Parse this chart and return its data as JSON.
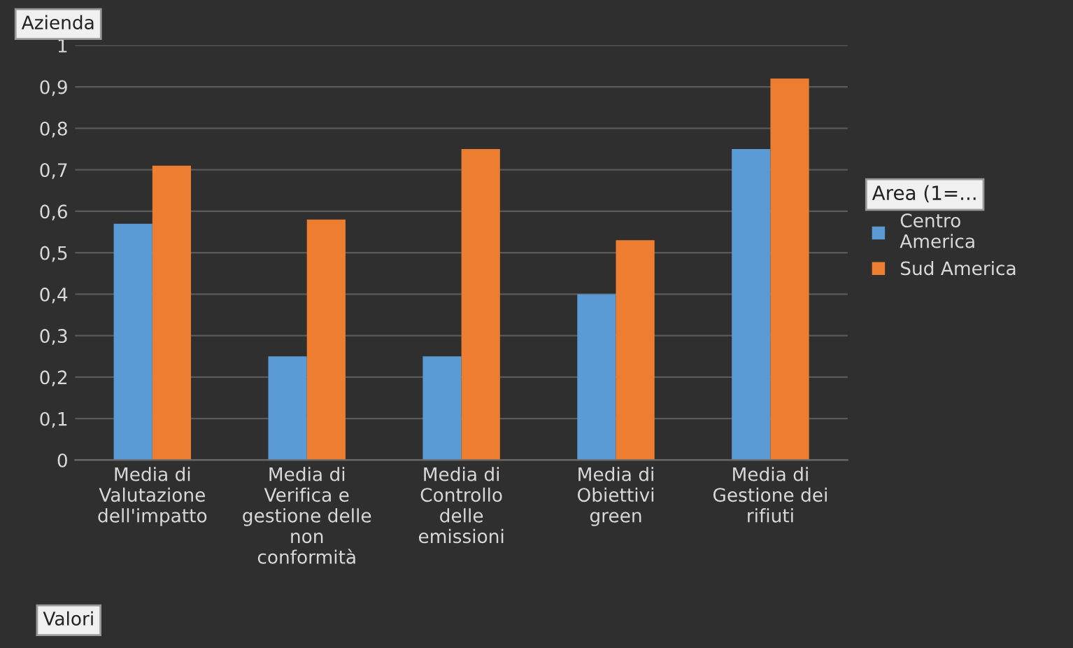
{
  "chart_data": {
    "type": "bar",
    "categories": [
      "Media di\nValutazione\ndell'impatto",
      "Media di\nVerifica e\ngestione delle\nnon\nconformità",
      "Media di\nControllo\ndelle\nemissioni",
      "Media di\nObiettivi\ngreen",
      "Media di\nGestione dei\nrifiuti"
    ],
    "series": [
      {
        "name": "Centro\nAmerica",
        "color": "#5b9bd5",
        "values": [
          0.57,
          0.25,
          0.25,
          0.4,
          0.75
        ]
      },
      {
        "name": "Sud America",
        "color": "#ed7d31",
        "values": [
          0.71,
          0.58,
          0.75,
          0.53,
          0.92
        ]
      }
    ],
    "ylim": [
      0,
      1
    ],
    "yticks": [
      {
        "value": 0,
        "label": "0"
      },
      {
        "value": 0.1,
        "label": "0,1"
      },
      {
        "value": 0.2,
        "label": "0,2"
      },
      {
        "value": 0.3,
        "label": "0,3"
      },
      {
        "value": 0.4,
        "label": "0,4"
      },
      {
        "value": 0.5,
        "label": "0,5"
      },
      {
        "value": 0.6,
        "label": "0,6"
      },
      {
        "value": 0.7,
        "label": "0,7"
      },
      {
        "value": 0.8,
        "label": "0,8"
      },
      {
        "value": 0.9,
        "label": "0,9"
      },
      {
        "value": 1,
        "label": "1"
      }
    ],
    "grid": "y",
    "legend": "right",
    "legend_title": "Area (1=...",
    "annotations": [
      "Azienda",
      "Valori"
    ]
  }
}
